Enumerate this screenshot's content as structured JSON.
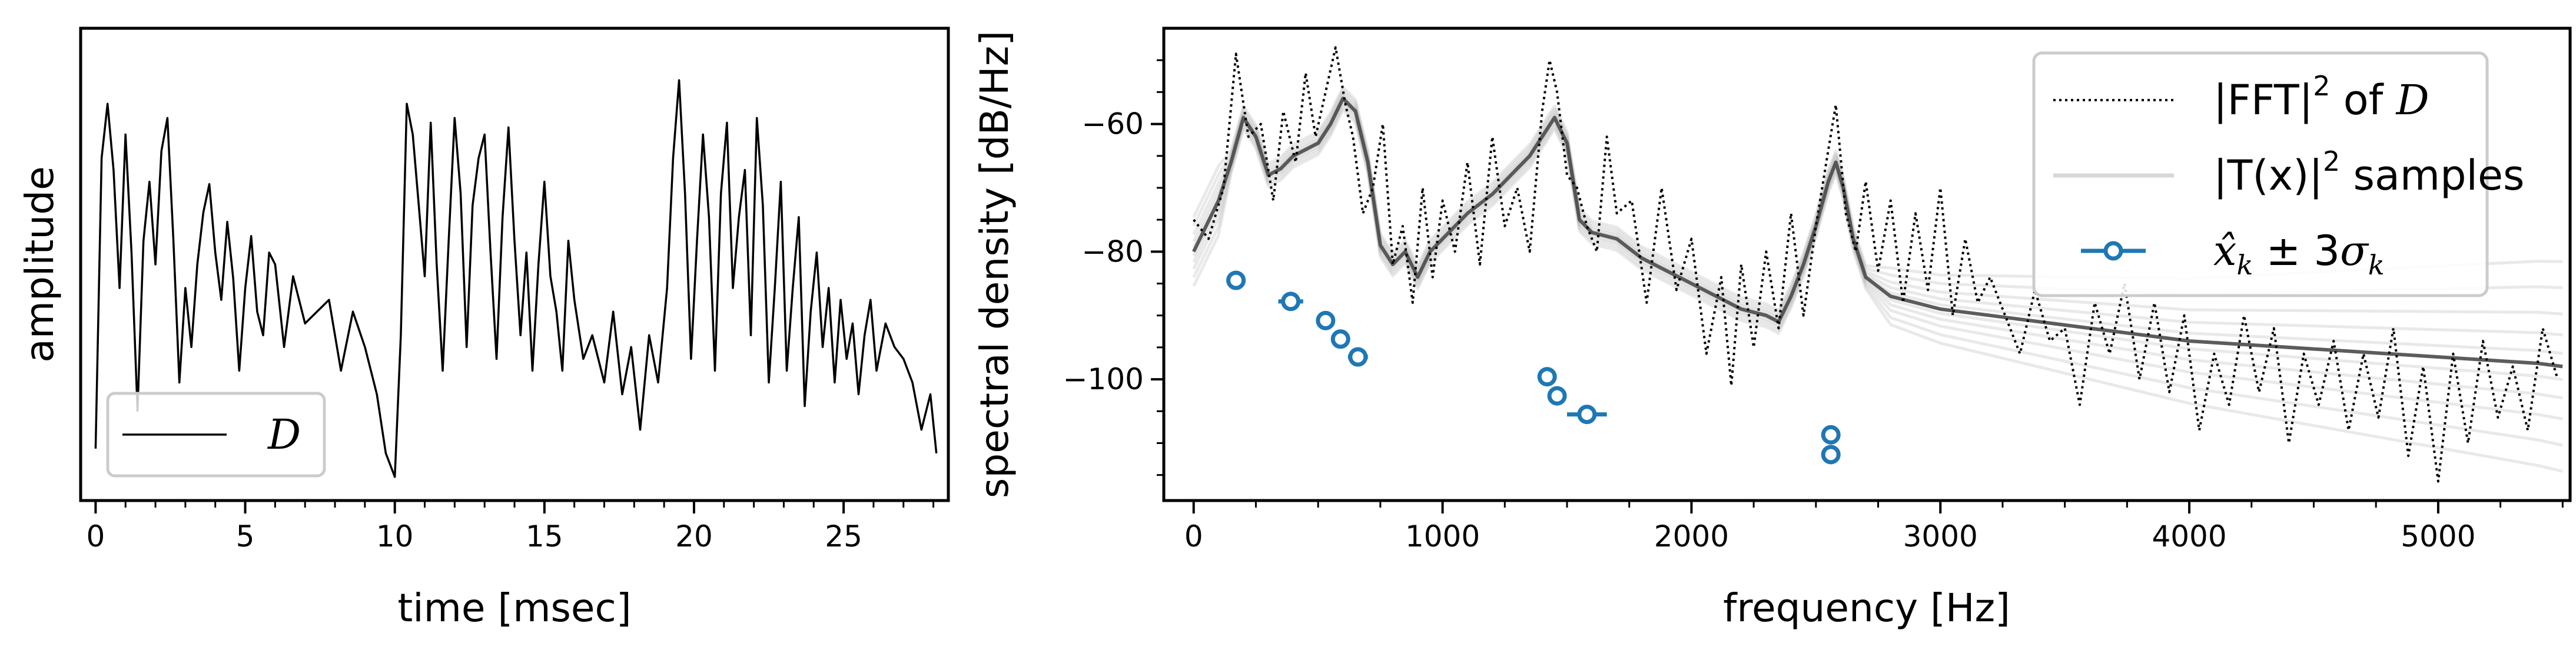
{
  "chart_data": [
    {
      "type": "line",
      "xlabel": "time [msec]",
      "ylabel": "amplitude",
      "xlim": [
        -0.5,
        28.5
      ],
      "ylim": [
        -1.0,
        1.0
      ],
      "x_ticks": [
        0,
        5,
        10,
        15,
        20,
        25
      ],
      "x_tick_labels": [
        "0",
        "5",
        "10",
        "15",
        "20",
        "25"
      ],
      "y_ticks_shown": false,
      "legend": {
        "placement": "lower-left",
        "entries": [
          {
            "label": "D",
            "style": "solid",
            "color": "#000000"
          }
        ]
      },
      "series": [
        {
          "name": "D",
          "color": "#000000",
          "x": [
            0.0,
            0.2,
            0.4,
            0.6,
            0.8,
            1.0,
            1.2,
            1.4,
            1.6,
            1.8,
            2.0,
            2.2,
            2.4,
            2.6,
            2.8,
            3.0,
            3.2,
            3.4,
            3.6,
            3.8,
            4.0,
            4.2,
            4.4,
            4.6,
            4.8,
            5.0,
            5.2,
            5.4,
            5.6,
            5.8,
            6.0,
            6.3,
            6.6,
            7.0,
            7.4,
            7.8,
            8.2,
            8.6,
            9.0,
            9.4,
            9.7,
            10.0,
            10.2,
            10.4,
            10.6,
            10.8,
            11.0,
            11.2,
            11.4,
            11.6,
            11.8,
            12.0,
            12.2,
            12.4,
            12.6,
            12.8,
            13.0,
            13.2,
            13.4,
            13.6,
            13.8,
            14.0,
            14.2,
            14.4,
            14.6,
            14.8,
            15.0,
            15.2,
            15.4,
            15.6,
            15.8,
            16.0,
            16.3,
            16.6,
            17.0,
            17.3,
            17.6,
            17.9,
            18.2,
            18.5,
            18.8,
            19.1,
            19.3,
            19.5,
            19.7,
            19.9,
            20.1,
            20.3,
            20.5,
            20.7,
            20.9,
            21.1,
            21.3,
            21.5,
            21.7,
            21.9,
            22.1,
            22.3,
            22.5,
            22.7,
            22.9,
            23.1,
            23.3,
            23.5,
            23.7,
            23.9,
            24.1,
            24.3,
            24.5,
            24.7,
            24.9,
            25.1,
            25.3,
            25.5,
            25.7,
            25.9,
            26.1,
            26.4,
            26.7,
            27.0,
            27.3,
            27.6,
            27.9,
            28.1
          ],
          "y": [
            -0.78,
            0.45,
            0.68,
            0.4,
            -0.1,
            0.55,
            0.05,
            -0.62,
            0.1,
            0.35,
            0.0,
            0.48,
            0.62,
            0.1,
            -0.5,
            -0.1,
            -0.35,
            0.0,
            0.22,
            0.34,
            0.05,
            -0.15,
            0.18,
            -0.06,
            -0.45,
            -0.1,
            0.12,
            -0.2,
            -0.3,
            0.05,
            0.0,
            -0.35,
            -0.05,
            -0.25,
            -0.2,
            -0.15,
            -0.45,
            -0.2,
            -0.35,
            -0.55,
            -0.8,
            -0.9,
            -0.3,
            0.68,
            0.55,
            0.25,
            -0.05,
            0.6,
            0.0,
            -0.45,
            0.1,
            0.62,
            0.3,
            -0.35,
            0.25,
            0.45,
            0.55,
            0.05,
            -0.4,
            0.2,
            0.58,
            0.1,
            -0.3,
            0.05,
            -0.45,
            0.0,
            0.35,
            -0.05,
            -0.2,
            -0.45,
            0.1,
            -0.15,
            -0.4,
            -0.3,
            -0.5,
            -0.2,
            -0.55,
            -0.35,
            -0.7,
            -0.3,
            -0.5,
            -0.1,
            0.45,
            0.78,
            0.3,
            -0.4,
            0.1,
            0.55,
            0.2,
            -0.45,
            0.3,
            0.6,
            -0.1,
            0.2,
            0.4,
            -0.3,
            0.62,
            0.25,
            -0.5,
            -0.1,
            0.35,
            -0.45,
            -0.1,
            0.2,
            -0.6,
            -0.2,
            0.05,
            -0.35,
            -0.1,
            -0.5,
            -0.15,
            -0.4,
            -0.25,
            -0.55,
            -0.3,
            -0.15,
            -0.45,
            -0.25,
            -0.35,
            -0.4,
            -0.5,
            -0.7,
            -0.55,
            -0.8
          ]
        }
      ]
    },
    {
      "type": "line",
      "xlabel": "frequency [Hz]",
      "ylabel": "spectral density [dB/Hz]",
      "xlim": [
        -120,
        5530
      ],
      "ylim": [
        -119,
        -45
      ],
      "x_ticks": [
        0,
        1000,
        2000,
        3000,
        4000,
        5000
      ],
      "x_tick_labels": [
        "0",
        "1000",
        "2000",
        "3000",
        "4000",
        "5000"
      ],
      "y_ticks": [
        -100,
        -80,
        -60
      ],
      "y_tick_labels": [
        "−100",
        "−80",
        "−60"
      ],
      "legend": {
        "placement": "top-right",
        "entries": [
          {
            "label_text": "|FFT|",
            "label_sup": "2",
            "label_tail": " of ",
            "label_math": "D",
            "style": "dotted",
            "color": "#000000"
          },
          {
            "label_text": "|T(x)|",
            "label_sup": "2",
            "label_tail": " samples",
            "style": "solid",
            "color": "#c0c0c0"
          },
          {
            "label_math": "x̂",
            "label_sub": "k",
            "label_tail": " ± 3",
            "label_math2": "σ",
            "label_sub2": "k",
            "style": "errorbar-circle",
            "color": "#1f77b4"
          }
        ]
      },
      "series": [
        {
          "name": "|FFT|^2 of D",
          "style": "dotted",
          "color": "#000000",
          "x": [
            0,
            60,
            120,
            170,
            220,
            270,
            320,
            360,
            410,
            450,
            490,
            530,
            570,
            610,
            640,
            680,
            720,
            760,
            800,
            840,
            880,
            920,
            960,
            1000,
            1050,
            1100,
            1150,
            1200,
            1250,
            1300,
            1350,
            1400,
            1430,
            1460,
            1500,
            1540,
            1580,
            1620,
            1660,
            1700,
            1760,
            1820,
            1880,
            1940,
            2000,
            2060,
            2120,
            2160,
            2200,
            2250,
            2300,
            2350,
            2400,
            2450,
            2500,
            2550,
            2580,
            2620,
            2660,
            2700,
            2750,
            2800,
            2850,
            2900,
            2950,
            3000,
            3050,
            3100,
            3150,
            3200,
            3260,
            3320,
            3380,
            3440,
            3500,
            3560,
            3620,
            3680,
            3740,
            3800,
            3860,
            3920,
            3980,
            4040,
            4100,
            4160,
            4220,
            4280,
            4340,
            4400,
            4460,
            4520,
            4580,
            4640,
            4700,
            4760,
            4820,
            4880,
            4940,
            5000,
            5060,
            5120,
            5180,
            5240,
            5300,
            5360,
            5420,
            5480
          ],
          "y": [
            -75,
            -78,
            -70,
            -49,
            -62,
            -60,
            -72,
            -58,
            -66,
            -52,
            -62,
            -55,
            -48,
            -57,
            -62,
            -74,
            -70,
            -60,
            -82,
            -76,
            -88,
            -70,
            -84,
            -72,
            -80,
            -66,
            -82,
            -62,
            -76,
            -70,
            -80,
            -58,
            -50,
            -55,
            -68,
            -70,
            -76,
            -80,
            -62,
            -74,
            -72,
            -88,
            -70,
            -86,
            -78,
            -96,
            -84,
            -101,
            -82,
            -95,
            -80,
            -92,
            -74,
            -90,
            -76,
            -64,
            -57,
            -74,
            -80,
            -69,
            -83,
            -72,
            -88,
            -74,
            -86,
            -70,
            -90,
            -78,
            -88,
            -84,
            -90,
            -96,
            -86,
            -94,
            -92,
            -104,
            -88,
            -96,
            -85,
            -100,
            -88,
            -102,
            -90,
            -108,
            -96,
            -104,
            -90,
            -102,
            -92,
            -110,
            -96,
            -104,
            -94,
            -108,
            -96,
            -106,
            -92,
            -112,
            -98,
            -116,
            -96,
            -110,
            -94,
            -106,
            -98,
            -108,
            -92,
            -100
          ]
        },
        {
          "name": "|T(x)|^2 samples",
          "style": "solid",
          "color": "#4f4f4f",
          "x": [
            0,
            100,
            150,
            200,
            250,
            300,
            350,
            400,
            450,
            500,
            550,
            600,
            650,
            700,
            750,
            800,
            850,
            900,
            950,
            1000,
            1100,
            1200,
            1300,
            1350,
            1400,
            1450,
            1500,
            1550,
            1600,
            1700,
            1800,
            1900,
            2000,
            2100,
            2200,
            2300,
            2350,
            2400,
            2450,
            2500,
            2550,
            2580,
            2610,
            2650,
            2700,
            2800,
            2900,
            3000,
            3200,
            3400,
            3600,
            3800,
            4000,
            4200,
            4400,
            4600,
            4800,
            5000,
            5200,
            5400,
            5500
          ],
          "y": [
            -80,
            -72,
            -66,
            -59,
            -62,
            -68,
            -67,
            -65,
            -64,
            -63,
            -60,
            -56,
            -58,
            -66,
            -79,
            -82,
            -80,
            -84,
            -80,
            -78,
            -74,
            -71,
            -67,
            -65,
            -62,
            -59,
            -63,
            -75,
            -77,
            -78,
            -81,
            -83,
            -85,
            -87,
            -89,
            -90,
            -91,
            -87,
            -82,
            -76,
            -69,
            -66,
            -70,
            -78,
            -84,
            -87,
            -88,
            -89,
            -90,
            -91,
            -92,
            -93,
            -94,
            -94.5,
            -95,
            -95.5,
            -96,
            -96.5,
            -97,
            -97.5,
            -98
          ]
        },
        {
          "name": "x̂_k ± 3σ_k",
          "style": "errorbar",
          "color": "#1f77b4",
          "points": [
            {
              "x": 170,
              "y": -84.5,
              "xerr": 10
            },
            {
              "x": 390,
              "y": -87.8,
              "xerr": 50
            },
            {
              "x": 530,
              "y": -90.8,
              "xerr": 20
            },
            {
              "x": 590,
              "y": -93.7,
              "xerr": 18
            },
            {
              "x": 660,
              "y": -96.5,
              "xerr": 40
            },
            {
              "x": 1420,
              "y": -99.6,
              "xerr": 15
            },
            {
              "x": 1460,
              "y": -102.6,
              "xerr": 15
            },
            {
              "x": 1580,
              "y": -105.5,
              "xerr": 80
            },
            {
              "x": 2560,
              "y": -108.7,
              "xerr": 8
            },
            {
              "x": 2560,
              "y": -111.8,
              "xerr": 8
            }
          ]
        }
      ]
    }
  ]
}
